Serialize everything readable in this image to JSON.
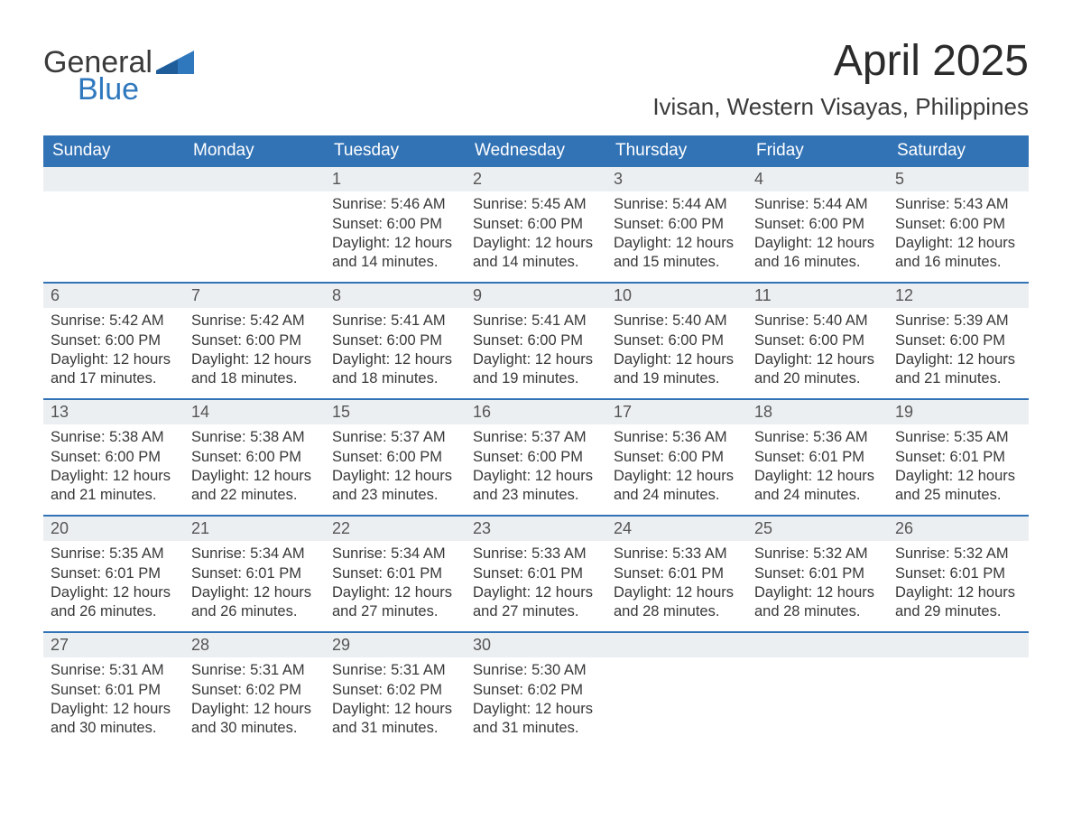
{
  "brand": {
    "word1": "General",
    "word2": "Blue"
  },
  "title": {
    "month": "April 2025",
    "location": "Ivisan, Western Visayas, Philippines"
  },
  "colors": {
    "header_bg": "#3273b6",
    "header_text": "#ffffff",
    "daynum_bg": "#eceff1",
    "separator": "#3273b6",
    "brand_blue": "#2f78bd",
    "text": "#333333",
    "background": "#ffffff"
  },
  "weekdays": [
    "Sunday",
    "Monday",
    "Tuesday",
    "Wednesday",
    "Thursday",
    "Friday",
    "Saturday"
  ],
  "labels": {
    "sunrise": "Sunrise:",
    "sunset": "Sunset:",
    "daylight": "Daylight:"
  },
  "weeks": [
    [
      null,
      null,
      {
        "n": "1",
        "sr": "5:46 AM",
        "ss": "6:00 PM",
        "dl": "12 hours and 14 minutes."
      },
      {
        "n": "2",
        "sr": "5:45 AM",
        "ss": "6:00 PM",
        "dl": "12 hours and 14 minutes."
      },
      {
        "n": "3",
        "sr": "5:44 AM",
        "ss": "6:00 PM",
        "dl": "12 hours and 15 minutes."
      },
      {
        "n": "4",
        "sr": "5:44 AM",
        "ss": "6:00 PM",
        "dl": "12 hours and 16 minutes."
      },
      {
        "n": "5",
        "sr": "5:43 AM",
        "ss": "6:00 PM",
        "dl": "12 hours and 16 minutes."
      }
    ],
    [
      {
        "n": "6",
        "sr": "5:42 AM",
        "ss": "6:00 PM",
        "dl": "12 hours and 17 minutes."
      },
      {
        "n": "7",
        "sr": "5:42 AM",
        "ss": "6:00 PM",
        "dl": "12 hours and 18 minutes."
      },
      {
        "n": "8",
        "sr": "5:41 AM",
        "ss": "6:00 PM",
        "dl": "12 hours and 18 minutes."
      },
      {
        "n": "9",
        "sr": "5:41 AM",
        "ss": "6:00 PM",
        "dl": "12 hours and 19 minutes."
      },
      {
        "n": "10",
        "sr": "5:40 AM",
        "ss": "6:00 PM",
        "dl": "12 hours and 19 minutes."
      },
      {
        "n": "11",
        "sr": "5:40 AM",
        "ss": "6:00 PM",
        "dl": "12 hours and 20 minutes."
      },
      {
        "n": "12",
        "sr": "5:39 AM",
        "ss": "6:00 PM",
        "dl": "12 hours and 21 minutes."
      }
    ],
    [
      {
        "n": "13",
        "sr": "5:38 AM",
        "ss": "6:00 PM",
        "dl": "12 hours and 21 minutes."
      },
      {
        "n": "14",
        "sr": "5:38 AM",
        "ss": "6:00 PM",
        "dl": "12 hours and 22 minutes."
      },
      {
        "n": "15",
        "sr": "5:37 AM",
        "ss": "6:00 PM",
        "dl": "12 hours and 23 minutes."
      },
      {
        "n": "16",
        "sr": "5:37 AM",
        "ss": "6:00 PM",
        "dl": "12 hours and 23 minutes."
      },
      {
        "n": "17",
        "sr": "5:36 AM",
        "ss": "6:00 PM",
        "dl": "12 hours and 24 minutes."
      },
      {
        "n": "18",
        "sr": "5:36 AM",
        "ss": "6:01 PM",
        "dl": "12 hours and 24 minutes."
      },
      {
        "n": "19",
        "sr": "5:35 AM",
        "ss": "6:01 PM",
        "dl": "12 hours and 25 minutes."
      }
    ],
    [
      {
        "n": "20",
        "sr": "5:35 AM",
        "ss": "6:01 PM",
        "dl": "12 hours and 26 minutes."
      },
      {
        "n": "21",
        "sr": "5:34 AM",
        "ss": "6:01 PM",
        "dl": "12 hours and 26 minutes."
      },
      {
        "n": "22",
        "sr": "5:34 AM",
        "ss": "6:01 PM",
        "dl": "12 hours and 27 minutes."
      },
      {
        "n": "23",
        "sr": "5:33 AM",
        "ss": "6:01 PM",
        "dl": "12 hours and 27 minutes."
      },
      {
        "n": "24",
        "sr": "5:33 AM",
        "ss": "6:01 PM",
        "dl": "12 hours and 28 minutes."
      },
      {
        "n": "25",
        "sr": "5:32 AM",
        "ss": "6:01 PM",
        "dl": "12 hours and 28 minutes."
      },
      {
        "n": "26",
        "sr": "5:32 AM",
        "ss": "6:01 PM",
        "dl": "12 hours and 29 minutes."
      }
    ],
    [
      {
        "n": "27",
        "sr": "5:31 AM",
        "ss": "6:01 PM",
        "dl": "12 hours and 30 minutes."
      },
      {
        "n": "28",
        "sr": "5:31 AM",
        "ss": "6:02 PM",
        "dl": "12 hours and 30 minutes."
      },
      {
        "n": "29",
        "sr": "5:31 AM",
        "ss": "6:02 PM",
        "dl": "12 hours and 31 minutes."
      },
      {
        "n": "30",
        "sr": "5:30 AM",
        "ss": "6:02 PM",
        "dl": "12 hours and 31 minutes."
      },
      null,
      null,
      null
    ]
  ]
}
